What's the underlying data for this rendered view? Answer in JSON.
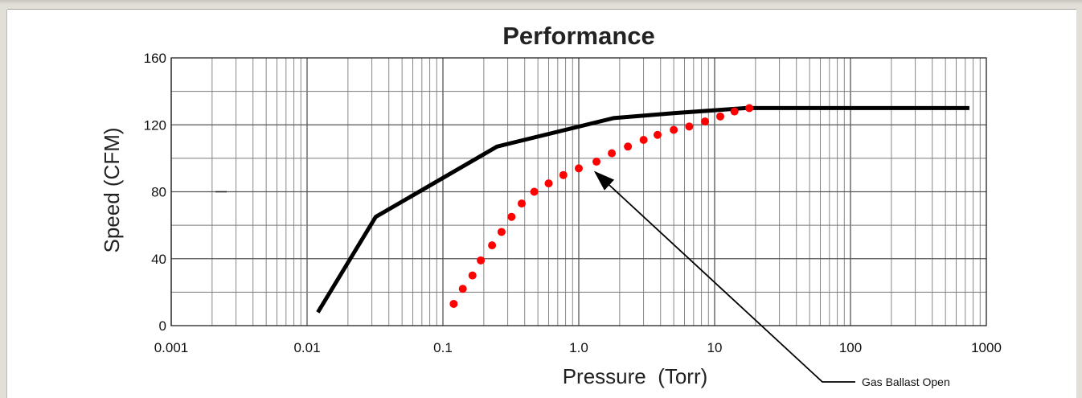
{
  "chart_data": {
    "type": "line",
    "title": "Performance",
    "xlabel": "Pressure  (Torr)",
    "ylabel": "Speed (CFM)",
    "xscale": "log",
    "xlim": [
      0.001,
      1000
    ],
    "ylim": [
      0,
      160
    ],
    "x_tick_labels": [
      "0.001",
      "0.01",
      "0.1",
      "1.0",
      "10",
      "100",
      "1000"
    ],
    "y_tick_labels": [
      "0",
      "40",
      "80",
      "120",
      "160"
    ],
    "grid": true,
    "series": [
      {
        "name": "",
        "style": "solid",
        "color": "#000000",
        "points": [
          [
            0.012,
            8
          ],
          [
            0.032,
            65
          ],
          [
            0.25,
            107
          ],
          [
            1.8,
            124
          ],
          [
            5,
            127
          ],
          [
            17,
            130
          ],
          [
            750,
            130
          ]
        ]
      },
      {
        "name": "",
        "style": "dotted",
        "color": "#ff0000",
        "points": [
          [
            0.12,
            13
          ],
          [
            0.14,
            22
          ],
          [
            0.165,
            30
          ],
          [
            0.19,
            39
          ],
          [
            0.23,
            48
          ],
          [
            0.27,
            56
          ],
          [
            0.32,
            65
          ],
          [
            0.38,
            73
          ],
          [
            0.47,
            80
          ],
          [
            0.6,
            85
          ],
          [
            0.77,
            90
          ],
          [
            1.0,
            94
          ],
          [
            1.35,
            98
          ],
          [
            1.75,
            103
          ],
          [
            2.3,
            107
          ],
          [
            3.0,
            111
          ],
          [
            3.8,
            114
          ],
          [
            5.0,
            117
          ],
          [
            6.5,
            119
          ],
          [
            8.5,
            122
          ],
          [
            11,
            125
          ],
          [
            14,
            128
          ],
          [
            18,
            130
          ]
        ]
      }
    ],
    "annotations": [
      {
        "text": "Gas Ballast Open",
        "points_to": [
          1.25,
          87
        ]
      }
    ]
  }
}
